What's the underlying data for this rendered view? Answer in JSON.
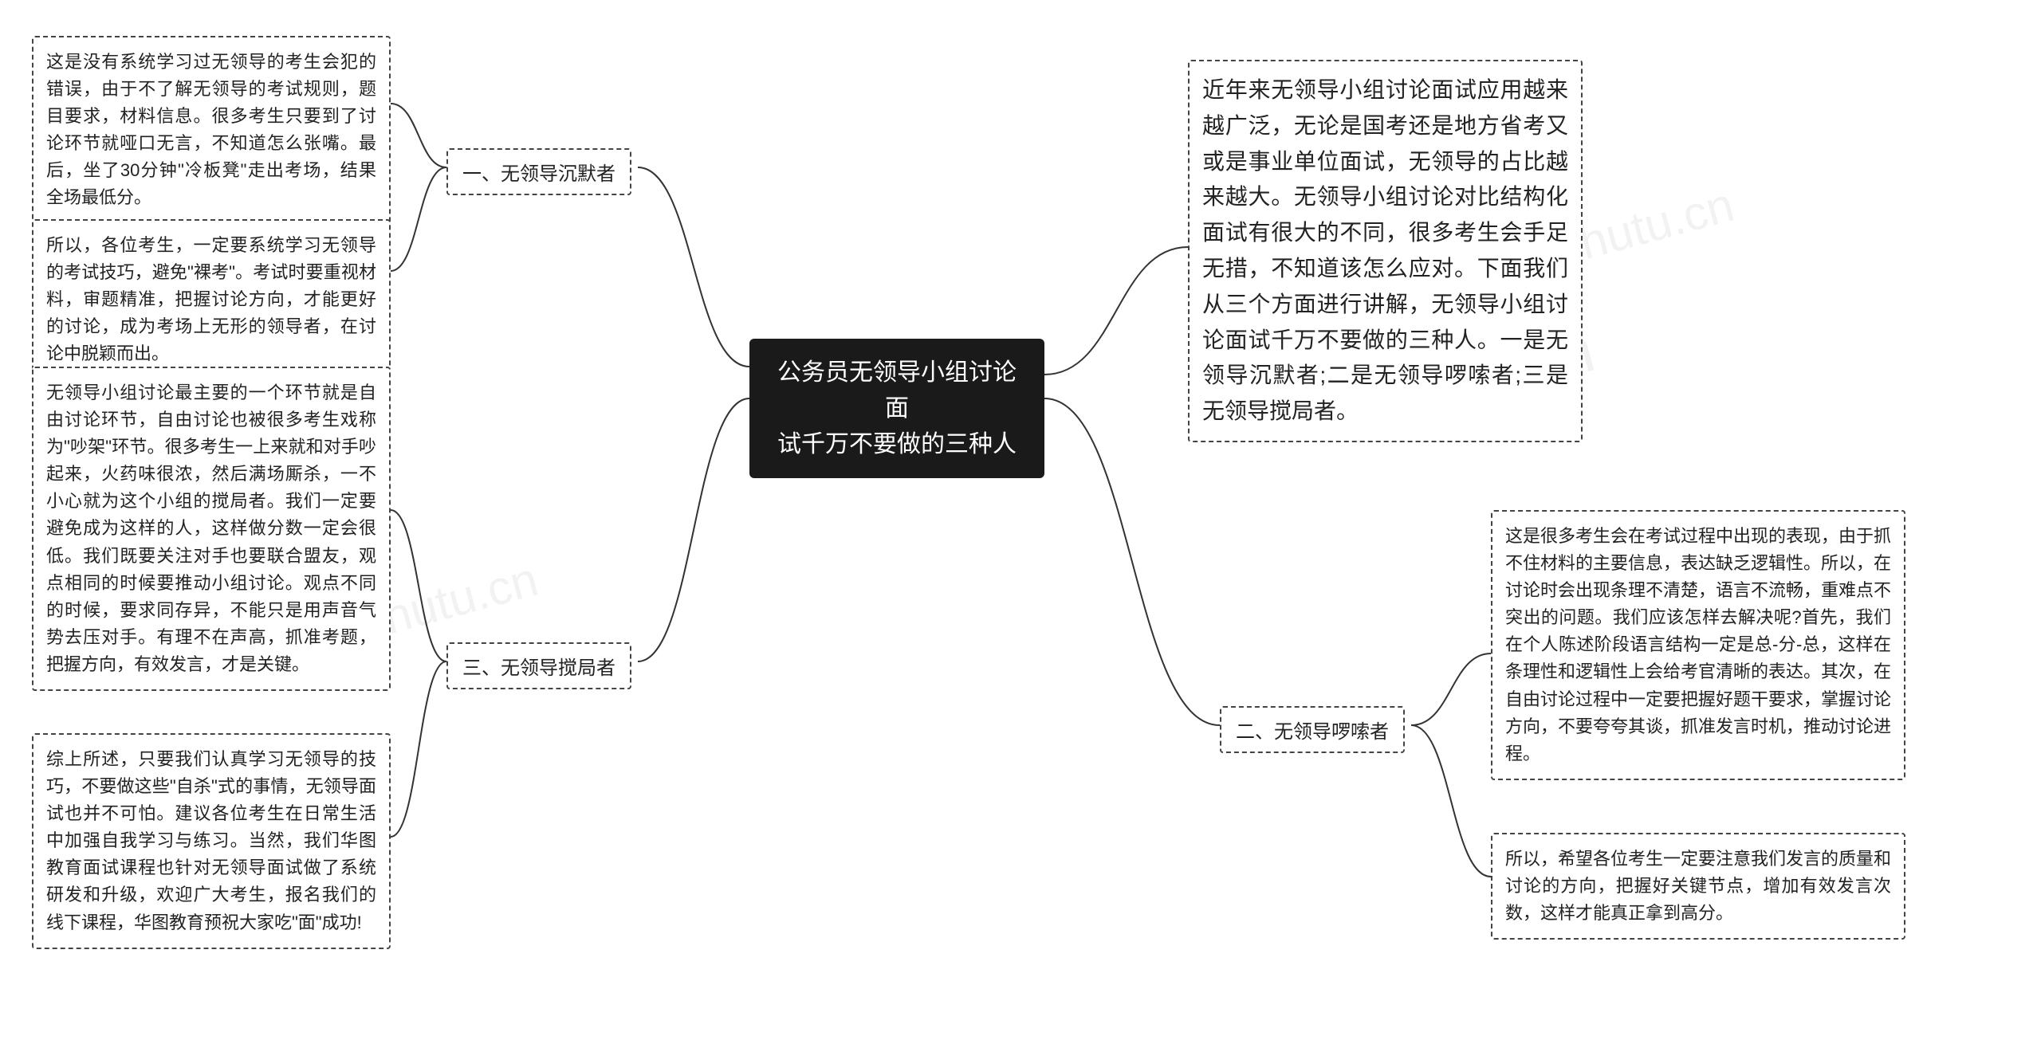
{
  "center": {
    "title": "公务员无领导小组讨论面\n试千万不要做的三种人"
  },
  "intro": {
    "text": "近年来无领导小组讨论面试应用越来越广泛，无论是国考还是地方省考又或是事业单位面试，无领导的占比越来越大。无领导小组讨论对比结构化面试有很大的不同，很多考生会手足无措，不知道该怎么应对。下面我们从三个方面进行讲解，无领导小组讨论面试千万不要做的三种人。一是无领导沉默者;二是无领导啰嗦者;三是无领导搅局者。"
  },
  "branches": {
    "b1": {
      "label": "一、无领导沉默者",
      "leaves": {
        "l1": "这是没有系统学习过无领导的考生会犯的错误，由于不了解无领导的考试规则，题目要求，材料信息。很多考生只要到了讨论环节就哑口无言，不知道怎么张嘴。最后，坐了30分钟\"冷板凳\"走出考场，结果全场最低分。",
        "l2": "所以，各位考生，一定要系统学习无领导的考试技巧，避免\"裸考\"。考试时要重视材料，审题精准，把握讨论方向，才能更好的讨论，成为考场上无形的领导者，在讨论中脱颖而出。"
      }
    },
    "b2": {
      "label": "二、无领导啰嗦者",
      "leaves": {
        "l1": "这是很多考生会在考试过程中出现的表现，由于抓不住材料的主要信息，表达缺乏逻辑性。所以，在讨论时会出现条理不清楚，语言不流畅，重难点不突出的问题。我们应该怎样去解决呢?首先，我们在个人陈述阶段语言结构一定是总-分-总，这样在条理性和逻辑性上会给考官清晰的表达。其次，在自由讨论过程中一定要把握好题干要求，掌握讨论方向，不要夸夸其谈，抓准发言时机，推动讨论进程。",
        "l2": "所以，希望各位考生一定要注意我们发言的质量和讨论的方向，把握好关键节点，增加有效发言次数，这样才能真正拿到高分。"
      }
    },
    "b3": {
      "label": "三、无领导搅局者",
      "leaves": {
        "l1": "无领导小组讨论最主要的一个环节就是自由讨论环节，自由讨论也被很多考生戏称为\"吵架\"环节。很多考生一上来就和对手吵起来，火药味很浓，然后满场厮杀，一不小心就为这个小组的搅局者。我们一定要避免成为这样的人，这样做分数一定会很低。我们既要关注对手也要联合盟友，观点相同的时候要推动小组讨论。观点不同的时候，要求同存异，不能只是用声音气势去压对手。有理不在声高，抓准考题，把握方向，有效发言，才是关键。",
        "l2": "综上所述，只要我们认真学习无领导的技巧，不要做这些\"自杀\"式的事情，无领导面试也并不可怕。建议各位考生在日常生活中加强自我学习与练习。当然，我们华图教育面试课程也针对无领导面试做了系统研发和升级，欢迎广大考生，报名我们的线下课程，华图教育预祝大家吃\"面\"成功!"
      }
    }
  },
  "style": {
    "bg": "#ffffff",
    "center_bg": "#1a1a1a",
    "center_color": "#ffffff",
    "border_color": "#444444",
    "text_color": "#222222",
    "line_color": "#333333",
    "center_fontsize": 30,
    "branch_fontsize": 24,
    "leaf_fontsize": 22
  },
  "watermark": "shutu.cn"
}
